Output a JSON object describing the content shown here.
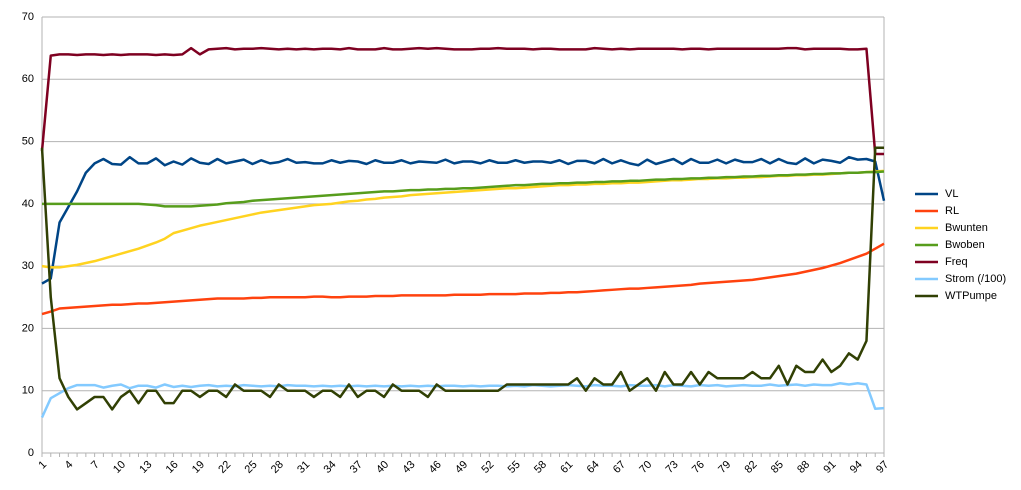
{
  "chart_data": {
    "type": "line",
    "categories": [
      "1",
      null,
      null,
      "4",
      null,
      null,
      "7",
      null,
      null,
      "10",
      null,
      null,
      "13",
      null,
      null,
      "16",
      null,
      null,
      "19",
      null,
      null,
      "22",
      null,
      null,
      "25",
      null,
      null,
      "28",
      null,
      null,
      "31",
      null,
      null,
      "34",
      null,
      null,
      "37",
      null,
      null,
      "40",
      null,
      null,
      "43",
      null,
      null,
      "46",
      null,
      null,
      "49",
      null,
      null,
      "52",
      null,
      null,
      "55",
      null,
      null,
      "58",
      null,
      null,
      "61",
      null,
      null,
      "64",
      null,
      null,
      "67",
      null,
      null,
      "70",
      null,
      null,
      "73",
      null,
      null,
      "76",
      null,
      null,
      "79",
      null,
      null,
      "82",
      null,
      null,
      "85",
      null,
      null,
      "88",
      null,
      null,
      "91",
      null,
      null,
      "94",
      null,
      null,
      "97"
    ],
    "ylim": [
      0,
      70
    ],
    "yticks": [
      0,
      10,
      20,
      30,
      40,
      50,
      60,
      70
    ],
    "grid": true,
    "legend": "right",
    "series": [
      {
        "name": "VL",
        "color": "#004586",
        "values": [
          27.2,
          28,
          37,
          39.5,
          42,
          45,
          46.5,
          47.2,
          46.4,
          46.3,
          47.5,
          46.5,
          46.5,
          47.3,
          46.2,
          46.8,
          46.3,
          47.3,
          46.6,
          46.4,
          47.2,
          46.5,
          46.8,
          47.1,
          46.4,
          47,
          46.5,
          46.7,
          47.2,
          46.6,
          46.7,
          46.5,
          46.5,
          47,
          46.6,
          46.9,
          46.8,
          46.4,
          47,
          46.6,
          46.6,
          47,
          46.5,
          46.8,
          46.7,
          46.6,
          47.1,
          46.5,
          46.8,
          46.8,
          46.5,
          47,
          46.6,
          46.6,
          47,
          46.6,
          46.8,
          46.8,
          46.6,
          47,
          46.4,
          46.9,
          46.9,
          46.5,
          47.2,
          46.5,
          47,
          46.5,
          46.2,
          47.1,
          46.4,
          46.8,
          47.2,
          46.4,
          47.2,
          46.6,
          46.6,
          47.1,
          46.5,
          47.1,
          46.7,
          46.7,
          47.2,
          46.5,
          47.2,
          46.6,
          46.4,
          47.3,
          46.5,
          47.1,
          46.9,
          46.6,
          47.5,
          47.1,
          47.2,
          46.8,
          40.5
        ]
      },
      {
        "name": "RL",
        "color": "#ff420e",
        "values": [
          22.3,
          22.7,
          23.2,
          23.3,
          23.4,
          23.5,
          23.6,
          23.7,
          23.8,
          23.8,
          23.9,
          24,
          24,
          24.1,
          24.2,
          24.3,
          24.4,
          24.5,
          24.6,
          24.7,
          24.8,
          24.8,
          24.8,
          24.8,
          24.9,
          24.9,
          25,
          25,
          25,
          25,
          25,
          25.1,
          25.1,
          25,
          25,
          25.1,
          25.1,
          25.1,
          25.2,
          25.2,
          25.2,
          25.3,
          25.3,
          25.3,
          25.3,
          25.3,
          25.3,
          25.4,
          25.4,
          25.4,
          25.4,
          25.5,
          25.5,
          25.5,
          25.5,
          25.6,
          25.6,
          25.6,
          25.7,
          25.7,
          25.8,
          25.8,
          25.9,
          26,
          26.1,
          26.2,
          26.3,
          26.4,
          26.4,
          26.5,
          26.6,
          26.7,
          26.8,
          26.9,
          27,
          27.2,
          27.3,
          27.4,
          27.5,
          27.6,
          27.7,
          27.8,
          28,
          28.2,
          28.4,
          28.6,
          28.8,
          29.1,
          29.4,
          29.7,
          30.1,
          30.5,
          31,
          31.5,
          32,
          32.8,
          33.6
        ]
      },
      {
        "name": "Bwunten",
        "color": "#ffd320",
        "values": [
          30,
          29.8,
          29.8,
          30,
          30.2,
          30.5,
          30.8,
          31.2,
          31.6,
          32,
          32.4,
          32.8,
          33.3,
          33.8,
          34.4,
          35.3,
          35.7,
          36.1,
          36.5,
          36.8,
          37.1,
          37.4,
          37.7,
          38,
          38.3,
          38.6,
          38.8,
          39,
          39.2,
          39.4,
          39.6,
          39.8,
          39.9,
          40,
          40.2,
          40.4,
          40.5,
          40.7,
          40.8,
          41,
          41.1,
          41.2,
          41.4,
          41.5,
          41.6,
          41.7,
          41.8,
          41.9,
          42,
          42.1,
          42.2,
          42.3,
          42.4,
          42.5,
          42.5,
          42.6,
          42.7,
          42.8,
          42.9,
          43,
          43,
          43.1,
          43.1,
          43.2,
          43.2,
          43.3,
          43.3,
          43.4,
          43.4,
          43.5,
          43.6,
          43.7,
          43.8,
          43.8,
          43.9,
          44,
          44,
          44.1,
          44.1,
          44.2,
          44.2,
          44.3,
          44.3,
          44.4,
          44.5,
          44.5,
          44.6,
          44.6,
          44.7,
          44.7,
          44.8,
          44.9,
          45,
          45,
          45.1,
          45.2,
          45.3
        ]
      },
      {
        "name": "Bwoben",
        "color": "#579d1c",
        "values": [
          40,
          40,
          40,
          40,
          40,
          40,
          40,
          40,
          40,
          40,
          40,
          40,
          39.9,
          39.8,
          39.6,
          39.6,
          39.6,
          39.6,
          39.7,
          39.8,
          39.9,
          40.1,
          40.2,
          40.3,
          40.5,
          40.6,
          40.7,
          40.8,
          40.9,
          41,
          41.1,
          41.2,
          41.3,
          41.4,
          41.5,
          41.6,
          41.7,
          41.8,
          41.9,
          42,
          42,
          42.1,
          42.2,
          42.2,
          42.3,
          42.3,
          42.4,
          42.4,
          42.5,
          42.5,
          42.6,
          42.7,
          42.8,
          42.9,
          43,
          43,
          43.1,
          43.2,
          43.2,
          43.3,
          43.3,
          43.4,
          43.4,
          43.5,
          43.5,
          43.6,
          43.6,
          43.7,
          43.7,
          43.8,
          43.9,
          43.9,
          44,
          44,
          44.1,
          44.1,
          44.2,
          44.2,
          44.3,
          44.3,
          44.4,
          44.4,
          44.5,
          44.5,
          44.6,
          44.6,
          44.7,
          44.7,
          44.8,
          44.8,
          44.9,
          44.9,
          45,
          45,
          45.1,
          45.1,
          45.2
        ]
      },
      {
        "name": "Freq",
        "color": "#7e0021",
        "values": [
          48.5,
          63.8,
          64,
          64,
          63.9,
          64,
          64,
          63.9,
          64,
          63.9,
          64,
          64,
          64,
          63.9,
          64,
          63.9,
          64,
          65,
          64,
          64.8,
          64.9,
          65,
          64.8,
          64.9,
          64.9,
          65,
          64.9,
          64.8,
          64.9,
          64.8,
          64.9,
          64.8,
          64.9,
          64.9,
          64.8,
          65,
          64.8,
          64.8,
          64.8,
          65,
          64.8,
          64.8,
          64.9,
          65,
          64.9,
          65,
          64.9,
          64.8,
          64.8,
          64.8,
          64.9,
          64.9,
          65,
          64.9,
          64.9,
          64.9,
          64.8,
          64.9,
          64.9,
          64.8,
          64.8,
          64.8,
          64.8,
          65,
          64.9,
          64.8,
          64.9,
          64.8,
          64.9,
          64.9,
          64.9,
          64.9,
          64.9,
          64.8,
          64.9,
          64.9,
          64.8,
          64.9,
          64.9,
          64.9,
          64.9,
          64.9,
          64.9,
          64.9,
          64.9,
          65,
          65,
          64.8,
          64.9,
          64.9,
          64.9,
          64.9,
          64.8,
          64.8,
          64.9,
          48,
          48
        ]
      },
      {
        "name": "Strom (/100)",
        "color": "#83caff",
        "values": [
          5.7,
          8.8,
          9.6,
          10.4,
          10.9,
          10.9,
          10.9,
          10.5,
          10.8,
          11,
          10.4,
          10.8,
          10.8,
          10.5,
          11,
          10.6,
          10.8,
          10.6,
          10.8,
          10.9,
          10.7,
          10.8,
          10.7,
          10.9,
          10.8,
          10.7,
          10.8,
          10.7,
          10.9,
          10.8,
          10.8,
          10.7,
          10.8,
          10.7,
          10.8,
          10.7,
          10.8,
          10.7,
          10.8,
          10.7,
          10.8,
          10.7,
          10.8,
          10.7,
          10.8,
          10.7,
          10.8,
          10.8,
          10.7,
          10.8,
          10.7,
          10.8,
          10.8,
          10.7,
          10.8,
          10.7,
          10.9,
          10.8,
          10.7,
          10.8,
          10.9,
          10.8,
          10.7,
          10.9,
          10.8,
          10.8,
          10.7,
          10.9,
          10.8,
          10.8,
          10.9,
          10.7,
          10.9,
          10.8,
          10.7,
          10.9,
          10.8,
          10.9,
          10.7,
          10.8,
          10.9,
          10.8,
          10.8,
          11,
          10.8,
          10.9,
          11,
          10.8,
          11,
          10.9,
          10.9,
          11.2,
          11,
          11.2,
          11,
          7.1,
          7.2
        ]
      },
      {
        "name": "WTPumpe",
        "color": "#314004",
        "values": [
          49,
          25,
          12,
          9,
          7,
          8,
          9,
          9,
          7,
          9,
          10,
          8,
          10,
          10,
          8,
          8,
          10,
          10,
          9,
          10,
          10,
          9,
          11,
          10,
          10,
          10,
          9,
          11,
          10,
          10,
          10,
          9,
          10,
          10,
          9,
          11,
          9,
          10,
          10,
          9,
          11,
          10,
          10,
          10,
          9,
          11,
          10,
          10,
          10,
          10,
          10,
          10,
          10,
          11,
          11,
          11,
          11,
          11,
          11,
          11,
          11,
          12,
          10,
          12,
          11,
          11,
          13,
          10,
          11,
          12,
          10,
          13,
          11,
          11,
          13,
          11,
          13,
          12,
          12,
          12,
          12,
          13,
          12,
          12,
          14,
          11,
          14,
          13,
          13,
          15,
          13,
          14,
          16,
          15,
          18,
          49,
          49
        ]
      }
    ]
  }
}
